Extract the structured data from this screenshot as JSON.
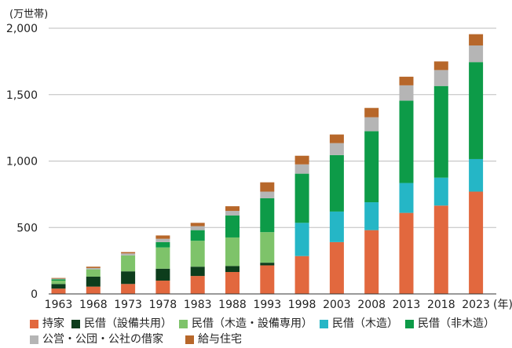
{
  "chart_data": {
    "type": "bar",
    "stacked": true,
    "unit_label": "(万世帯)",
    "xlabel_suffix": "(年)",
    "categories": [
      "1963",
      "1968",
      "1973",
      "1978",
      "1983",
      "1988",
      "1993",
      "1998",
      "2003",
      "2008",
      "2013",
      "2018",
      "2023"
    ],
    "ylim": [
      0,
      2000
    ],
    "yticks": [
      "0",
      "500",
      "1,000",
      "1,500",
      "2,000"
    ],
    "ytick_values": [
      0,
      500,
      1000,
      1500,
      2000
    ],
    "grid": true,
    "legend_placement": "bottom",
    "series": [
      {
        "name": "持家",
        "color": "#e2683e",
        "values": [
          40,
          55,
          75,
          100,
          135,
          165,
          215,
          285,
          390,
          480,
          610,
          665,
          770
        ]
      },
      {
        "name": "民借（設備共用）",
        "color": "#0d3d1c",
        "values": [
          35,
          75,
          95,
          90,
          70,
          45,
          20,
          0,
          0,
          0,
          0,
          0,
          0
        ]
      },
      {
        "name": "民借（木造・設備専用）",
        "color": "#7ec36a",
        "values": [
          25,
          55,
          120,
          160,
          195,
          215,
          230,
          0,
          0,
          0,
          0,
          0,
          0
        ]
      },
      {
        "name": "民借（木造）",
        "color": "#25b6c6",
        "values": [
          0,
          0,
          0,
          0,
          0,
          0,
          0,
          250,
          230,
          210,
          225,
          210,
          245
        ]
      },
      {
        "name": "民借（非木造）",
        "color": "#0d9b48",
        "values": [
          10,
          0,
          0,
          40,
          80,
          165,
          255,
          370,
          425,
          535,
          620,
          690,
          730
        ]
      },
      {
        "name": "公営・公団・公社の借家",
        "color": "#b5b5b5",
        "values": [
          5,
          10,
          15,
          25,
          30,
          35,
          50,
          70,
          90,
          105,
          115,
          120,
          125
        ]
      },
      {
        "name": "給与住宅",
        "color": "#b7672a",
        "values": [
          5,
          10,
          10,
          25,
          25,
          35,
          70,
          65,
          65,
          70,
          65,
          65,
          85
        ]
      }
    ]
  }
}
